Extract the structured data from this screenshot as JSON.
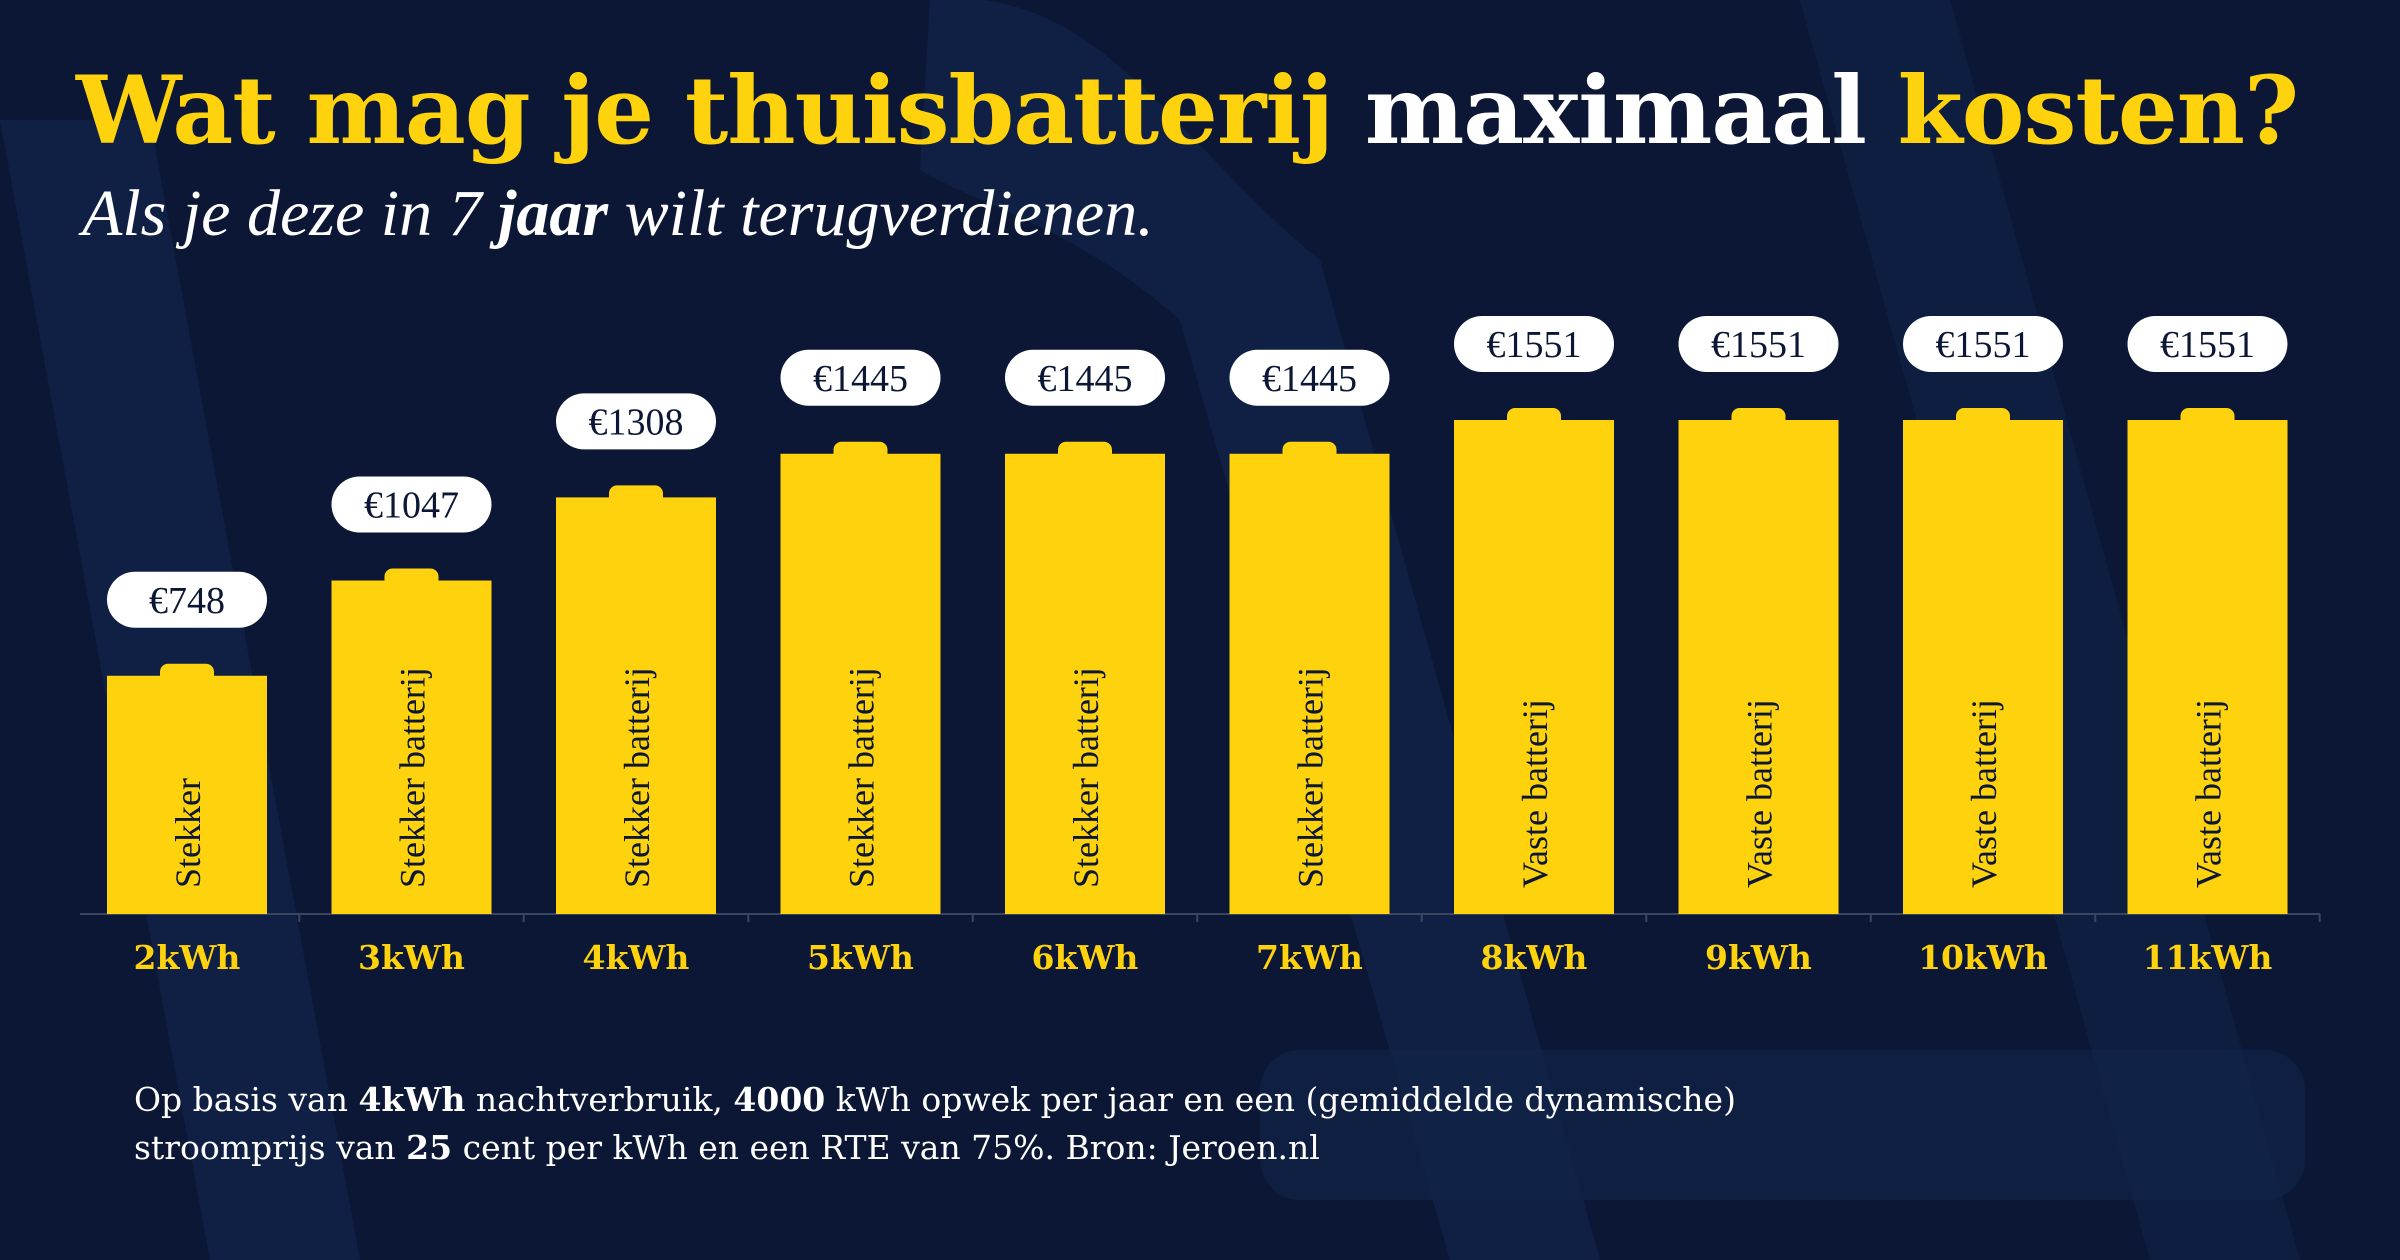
{
  "title": {
    "part1": "Wat mag je thuisbatterij",
    "part2": "maximaal",
    "part3": "kosten?"
  },
  "subtitle": {
    "before": "Als je deze in 7",
    "bold": "jaar",
    "after": "wilt terugverdienen."
  },
  "colors": {
    "background": "#0b1735",
    "bar": "#ffd20e",
    "label_box": "#ffffff",
    "accent_text": "#ffd20e"
  },
  "chart_data": {
    "type": "bar",
    "categories": [
      "2kWh",
      "3kWh",
      "4kWh",
      "5kWh",
      "6kWh",
      "7kWh",
      "8kWh",
      "9kWh",
      "10kWh",
      "11kWh"
    ],
    "values": [
      748,
      1047,
      1308,
      1445,
      1445,
      1445,
      1551,
      1551,
      1551,
      1551
    ],
    "data_labels": [
      "€748",
      "€1047",
      "€1308",
      "€1445",
      "€1445",
      "€1445",
      "€1551",
      "€1551",
      "€1551",
      "€1551"
    ],
    "bar_labels": [
      "Stekker",
      "Stekker batterij",
      "Stekker batterij",
      "Stekker batterij",
      "Stekker batterij",
      "Stekker batterij",
      "Vaste batterij",
      "Vaste batterij",
      "Vaste batterij",
      "Vaste batterij"
    ],
    "ylim": [
      0,
      1551
    ],
    "grid": false,
    "legend": "none"
  },
  "footnote": {
    "line1": [
      {
        "text": "Op basis van ",
        "bold": false
      },
      {
        "text": "4kWh",
        "bold": true
      },
      {
        "text": " nachtverbruik, ",
        "bold": false
      },
      {
        "text": "4000",
        "bold": true
      },
      {
        "text": " kWh opwek per jaar en een (gemiddelde dynamische)",
        "bold": false
      }
    ],
    "line2": [
      {
        "text": "stroomprijs van ",
        "bold": false
      },
      {
        "text": "25",
        "bold": true
      },
      {
        "text": " cent per kWh en een RTE van 75%. Bron: Jeroen.nl",
        "bold": false
      }
    ]
  }
}
